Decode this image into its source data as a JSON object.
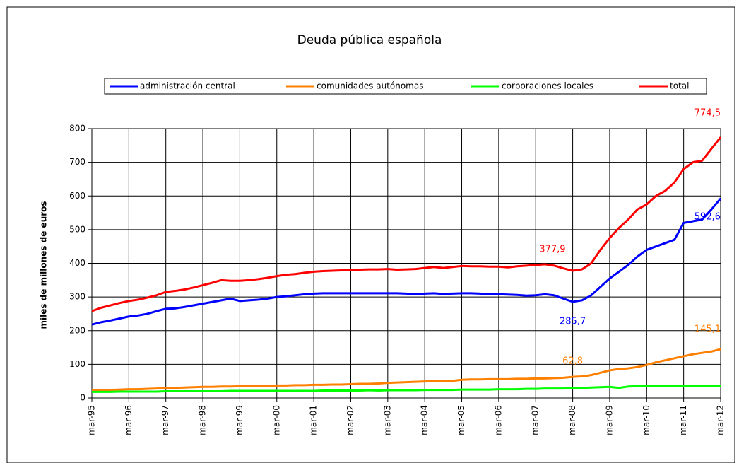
{
  "chart_data": {
    "type": "line",
    "title": "Deuda pública española",
    "y_label": "miles de millones de euros",
    "categories": [
      "mar-95",
      null,
      null,
      null,
      "mar-96",
      null,
      null,
      null,
      "mar-97",
      null,
      null,
      null,
      "mar-98",
      null,
      null,
      null,
      "mar-99",
      null,
      null,
      null,
      "mar-00",
      null,
      null,
      null,
      "mar-01",
      null,
      null,
      null,
      "mar-02",
      null,
      null,
      null,
      "mar-03",
      null,
      null,
      null,
      "mar-04",
      null,
      null,
      null,
      "mar-05",
      null,
      null,
      null,
      "mar-06",
      null,
      null,
      null,
      "mar-07",
      null,
      null,
      null,
      "mar-08",
      null,
      null,
      null,
      "mar-09",
      null,
      null,
      null,
      "mar-10",
      null,
      null,
      null,
      "mar-11",
      null,
      null,
      null,
      "mar-12"
    ],
    "ylim": [
      0,
      800
    ],
    "yticks": [
      0,
      100,
      200,
      300,
      400,
      500,
      600,
      700,
      800
    ],
    "grid": true,
    "legend": "top",
    "series": [
      {
        "name": "administración central",
        "color": "#0000ff",
        "values": [
          218,
          225,
          230,
          236,
          242,
          245,
          250,
          258,
          265,
          266,
          270,
          275,
          280,
          285,
          290,
          295,
          288,
          290,
          292,
          295,
          300,
          302,
          305,
          308,
          310,
          311,
          311,
          311,
          311,
          311,
          311,
          311,
          311,
          311,
          310,
          308,
          310,
          311,
          309,
          310,
          311,
          311,
          310,
          308,
          308,
          307,
          306,
          304,
          305,
          308,
          305,
          295,
          285.7,
          290,
          305,
          330,
          355,
          375,
          395,
          420,
          440,
          450,
          460,
          470,
          520,
          525,
          530,
          560,
          592.6
        ],
        "value_labels": [
          null,
          null,
          null,
          null,
          null,
          null,
          null,
          null,
          null,
          null,
          null,
          null,
          null,
          null,
          null,
          null,
          null,
          null,
          null,
          null,
          null,
          null,
          null,
          null,
          null,
          null,
          null,
          null,
          null,
          null,
          null,
          null,
          null,
          null,
          null,
          null,
          null,
          null,
          null,
          null,
          null,
          null,
          null,
          null,
          null,
          null,
          null,
          null,
          null,
          null,
          null,
          null,
          "285,7",
          null,
          null,
          null,
          null,
          null,
          null,
          null,
          null,
          null,
          null,
          null,
          null,
          null,
          null,
          null,
          "592,6"
        ]
      },
      {
        "name": "comunidades autónomas",
        "color": "#ff8000",
        "values": [
          22,
          23,
          24,
          25,
          26,
          26,
          27,
          28,
          30,
          30,
          31,
          32,
          33,
          33,
          34,
          34,
          35,
          35,
          35,
          36,
          37,
          37,
          38,
          38,
          39,
          39,
          40,
          40,
          41,
          42,
          42,
          43,
          45,
          46,
          47,
          48,
          49,
          50,
          50,
          51,
          54,
          55,
          55,
          56,
          56,
          56,
          57,
          57,
          58,
          58,
          59,
          60,
          62.8,
          64,
          68,
          75,
          82,
          86,
          88,
          92,
          98,
          106,
          112,
          118,
          124,
          130,
          134,
          138,
          145.1
        ],
        "value_labels": [
          null,
          null,
          null,
          null,
          null,
          null,
          null,
          null,
          null,
          null,
          null,
          null,
          null,
          null,
          null,
          null,
          null,
          null,
          null,
          null,
          null,
          null,
          null,
          null,
          null,
          null,
          null,
          null,
          null,
          null,
          null,
          null,
          null,
          null,
          null,
          null,
          null,
          null,
          null,
          null,
          null,
          null,
          null,
          null,
          null,
          null,
          null,
          null,
          null,
          null,
          null,
          null,
          "62,8",
          null,
          null,
          null,
          null,
          null,
          null,
          null,
          null,
          null,
          null,
          null,
          null,
          null,
          null,
          null,
          "145,1"
        ]
      },
      {
        "name": "corporaciones locales",
        "color": "#00ff00",
        "values": [
          18,
          18,
          18,
          19,
          19,
          19,
          19,
          19,
          20,
          20,
          20,
          20,
          20,
          20,
          20,
          21,
          21,
          21,
          21,
          21,
          21,
          21,
          21,
          21,
          21,
          22,
          22,
          22,
          22,
          22,
          23,
          22,
          23,
          23,
          23,
          23,
          24,
          24,
          24,
          24,
          25,
          25,
          25,
          25,
          26,
          26,
          26,
          27,
          27,
          28,
          28,
          28,
          29,
          30,
          31,
          32,
          33,
          30,
          34,
          35,
          35,
          35,
          35,
          35,
          35,
          35,
          35,
          35,
          35
        ]
      },
      {
        "name": "total",
        "color": "#ff0000",
        "values": [
          258,
          268,
          275,
          282,
          288,
          292,
          298,
          305,
          315,
          318,
          322,
          328,
          335,
          342,
          350,
          348,
          348,
          350,
          353,
          357,
          362,
          366,
          368,
          372,
          375,
          377,
          378,
          379,
          380,
          381,
          382,
          382,
          383,
          381,
          382,
          383,
          386,
          389,
          386,
          389,
          392,
          391,
          391,
          390,
          390,
          388,
          391,
          393,
          395,
          397,
          393,
          385,
          377.9,
          382,
          400,
          440,
          475,
          505,
          530,
          560,
          575,
          600,
          615,
          640,
          680,
          700,
          705,
          740,
          774.5
        ],
        "value_labels": [
          null,
          null,
          null,
          null,
          null,
          null,
          null,
          null,
          null,
          null,
          null,
          null,
          null,
          null,
          null,
          null,
          null,
          null,
          null,
          null,
          null,
          null,
          null,
          null,
          null,
          null,
          null,
          null,
          null,
          null,
          null,
          null,
          null,
          null,
          null,
          null,
          null,
          null,
          null,
          null,
          null,
          null,
          null,
          null,
          null,
          null,
          null,
          null,
          null,
          null,
          null,
          null,
          "377,9",
          null,
          null,
          null,
          null,
          null,
          null,
          null,
          null,
          null,
          null,
          null,
          null,
          null,
          null,
          null,
          "774,5"
        ]
      }
    ]
  }
}
